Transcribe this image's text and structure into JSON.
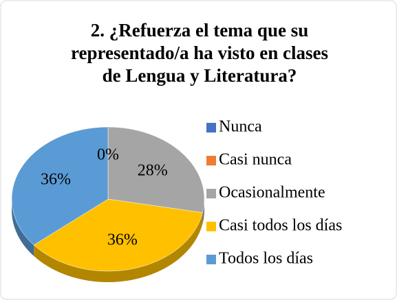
{
  "chart_data": {
    "type": "pie",
    "title": [
      "2. ¿Refuerza el tema que su",
      "representado/a ha visto en clases",
      "de Lengua y Literatura?"
    ],
    "categories": [
      "Nunca",
      "Casi nunca",
      "Ocasionalmente",
      "Casi todos los días",
      "Todos los días"
    ],
    "values": [
      0,
      0,
      28,
      36,
      36
    ],
    "value_labels": [
      "0%",
      null,
      "28%",
      "36%",
      "36%"
    ],
    "colors": [
      "#4472c4",
      "#ed7d31",
      "#a5a5a5",
      "#ffc000",
      "#5b9bd5"
    ],
    "legend": "right"
  }
}
